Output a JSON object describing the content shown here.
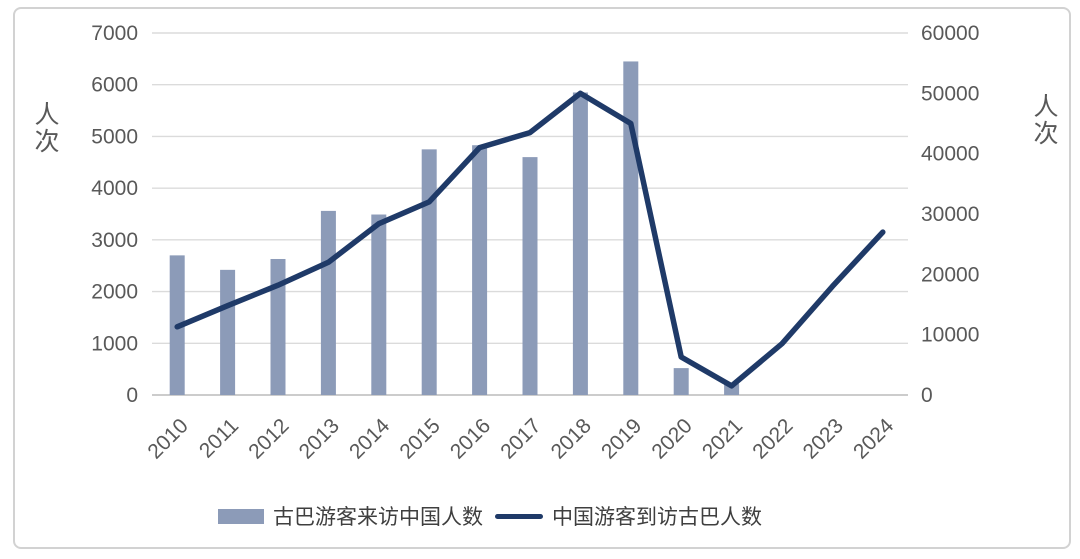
{
  "chart_data": {
    "type": "combo-bar-line",
    "title": "",
    "categories": [
      "2010",
      "2011",
      "2012",
      "2013",
      "2014",
      "2015",
      "2016",
      "2017",
      "2018",
      "2019",
      "2020",
      "2021",
      "2022",
      "2023",
      "2024"
    ],
    "series": [
      {
        "name": "古巴游客来访中国人数",
        "type": "bar",
        "axis": "left",
        "values": [
          2700,
          2420,
          2630,
          3560,
          3490,
          4750,
          4830,
          4600,
          5850,
          6450,
          520,
          220,
          null,
          null,
          null
        ]
      },
      {
        "name": "中国游客到访古巴人数",
        "type": "line",
        "axis": "right",
        "values": [
          11300,
          14800,
          18200,
          22000,
          28400,
          32000,
          41000,
          43500,
          50000,
          45000,
          6300,
          1500,
          8500,
          18000,
          27000
        ]
      }
    ],
    "left_axis": {
      "title": "人次",
      "min": 0,
      "max": 7000,
      "step": 1000,
      "tick_labels": [
        "0",
        "1000",
        "2000",
        "3000",
        "4000",
        "5000",
        "6000",
        "7000"
      ]
    },
    "right_axis": {
      "title": "人次",
      "min": 0,
      "max": 60000,
      "step": 10000,
      "tick_labels": [
        "0",
        "10000",
        "20000",
        "30000",
        "40000",
        "50000",
        "60000"
      ]
    },
    "grid": true,
    "legend_position": "bottom"
  },
  "colors": {
    "bar": "#8C9BB8",
    "line": "#1F3A68",
    "grid": "#DBDBDB",
    "axis_line": "#C4C4C4",
    "tick_text": "#595959",
    "legend_text": "#3F3F3F",
    "card_border": "#D2D2D2",
    "background": "#FFFFFF"
  }
}
